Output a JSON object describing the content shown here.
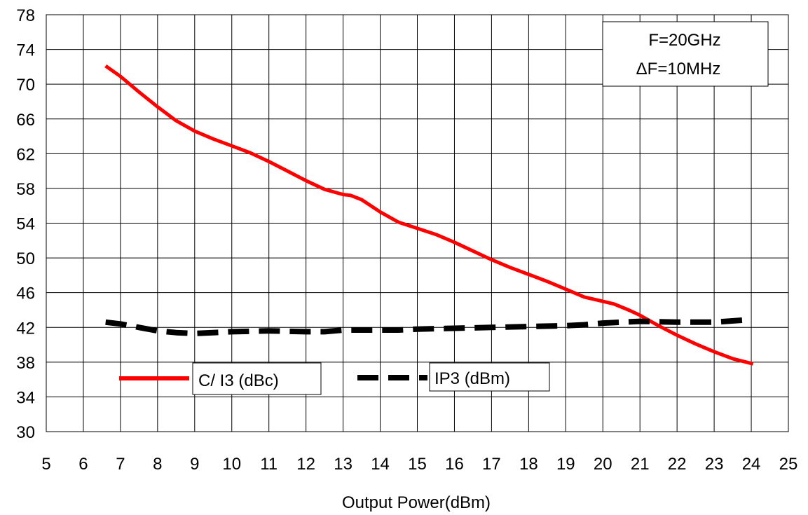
{
  "chart_data": {
    "type": "line",
    "title": "",
    "xlabel": "Output Power(dBm)",
    "ylabel": "",
    "xlim": [
      5,
      25
    ],
    "ylim": [
      30,
      78
    ],
    "x_ticks": [
      5,
      6,
      7,
      8,
      9,
      10,
      11,
      12,
      13,
      14,
      15,
      16,
      17,
      18,
      19,
      20,
      21,
      22,
      23,
      24,
      25
    ],
    "y_ticks": [
      30,
      34,
      38,
      42,
      46,
      50,
      54,
      58,
      62,
      66,
      70,
      74,
      78
    ],
    "grid": true,
    "annotation": {
      "line1": "F=20GHz",
      "line2": "ΔF=10MHz"
    },
    "legend_position": "bottom-left",
    "series": [
      {
        "name": "C/ I3 (dBc)",
        "color": "#ff0000",
        "style": "solid",
        "x": [
          6.6,
          7,
          7.5,
          8,
          8.5,
          9,
          9.5,
          10,
          10.5,
          11,
          11.5,
          12,
          12.5,
          13,
          13.2,
          13.5,
          14,
          14.5,
          15,
          15.5,
          16,
          16.5,
          17,
          17.5,
          18,
          18.5,
          19,
          19.5,
          20,
          20.3,
          20.7,
          21,
          21.5,
          22,
          22.5,
          23,
          23.5,
          24.05
        ],
        "y": [
          72.1,
          70.9,
          69.1,
          67.4,
          65.8,
          64.6,
          63.7,
          62.9,
          62.1,
          61.1,
          60.0,
          58.9,
          57.9,
          57.3,
          57.2,
          56.7,
          55.3,
          54.1,
          53.4,
          52.7,
          51.8,
          50.8,
          49.8,
          48.9,
          48.1,
          47.3,
          46.4,
          45.5,
          45.0,
          44.7,
          44.0,
          43.4,
          42.2,
          41.1,
          40.1,
          39.2,
          38.4,
          37.8
        ]
      },
      {
        "name": "IP3 (dBm)",
        "color": "#000000",
        "style": "dashed",
        "x": [
          6.6,
          7,
          7.5,
          8,
          8.5,
          9,
          9.5,
          10,
          11,
          12,
          12.5,
          13,
          14,
          14.5,
          15,
          16,
          17,
          18,
          19,
          19.5,
          20,
          21,
          22,
          22.5,
          23,
          24
        ],
        "y": [
          42.6,
          42.4,
          42.0,
          41.6,
          41.4,
          41.3,
          41.4,
          41.5,
          41.6,
          41.5,
          41.5,
          41.7,
          41.7,
          41.7,
          41.8,
          41.9,
          42.0,
          42.1,
          42.2,
          42.3,
          42.5,
          42.7,
          42.6,
          42.6,
          42.6,
          42.9
        ]
      }
    ]
  }
}
